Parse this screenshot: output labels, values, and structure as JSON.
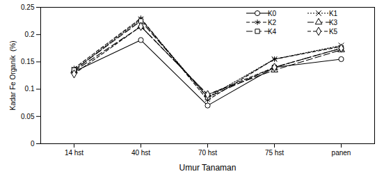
{
  "chart_data": {
    "type": "line",
    "x_label": "Umur Tanaman",
    "y_label": "Kadar Fe Organik  (%)",
    "categories": [
      "14 hst",
      "40 hst",
      "70 hst",
      "75 hst",
      "panen"
    ],
    "ylim": [
      0,
      0.25
    ],
    "yticks": [
      0,
      0.05,
      0.1,
      0.15,
      0.2,
      0.25
    ],
    "legend": "top-right",
    "series": [
      {
        "name": "K0",
        "color": "#000000",
        "marker": "circle",
        "line_style": "solid",
        "values": [
          0.132,
          0.19,
          0.07,
          0.14,
          0.155
        ]
      },
      {
        "name": "K1",
        "color": "#000000",
        "marker": "times",
        "line_style": "dotted",
        "values": [
          0.135,
          0.228,
          0.085,
          0.155,
          0.18
        ]
      },
      {
        "name": "K2",
        "color": "#000000",
        "marker": "asterisk",
        "line_style": "dashed",
        "values": [
          0.138,
          0.23,
          0.08,
          0.155,
          0.178
        ]
      },
      {
        "name": "K3",
        "color": "#000000",
        "marker": "triangle",
        "line_style": "longdash",
        "values": [
          0.133,
          0.215,
          0.09,
          0.135,
          0.172
        ]
      },
      {
        "name": "K4",
        "color": "#000000",
        "marker": "square",
        "line_style": "longdash",
        "values": [
          0.135,
          0.225,
          0.085,
          0.14,
          0.175
        ]
      },
      {
        "name": "K5",
        "color": "#000000",
        "marker": "diamond",
        "line_style": "dashed",
        "values": [
          0.128,
          0.215,
          0.09,
          0.14,
          0.175
        ]
      }
    ]
  }
}
